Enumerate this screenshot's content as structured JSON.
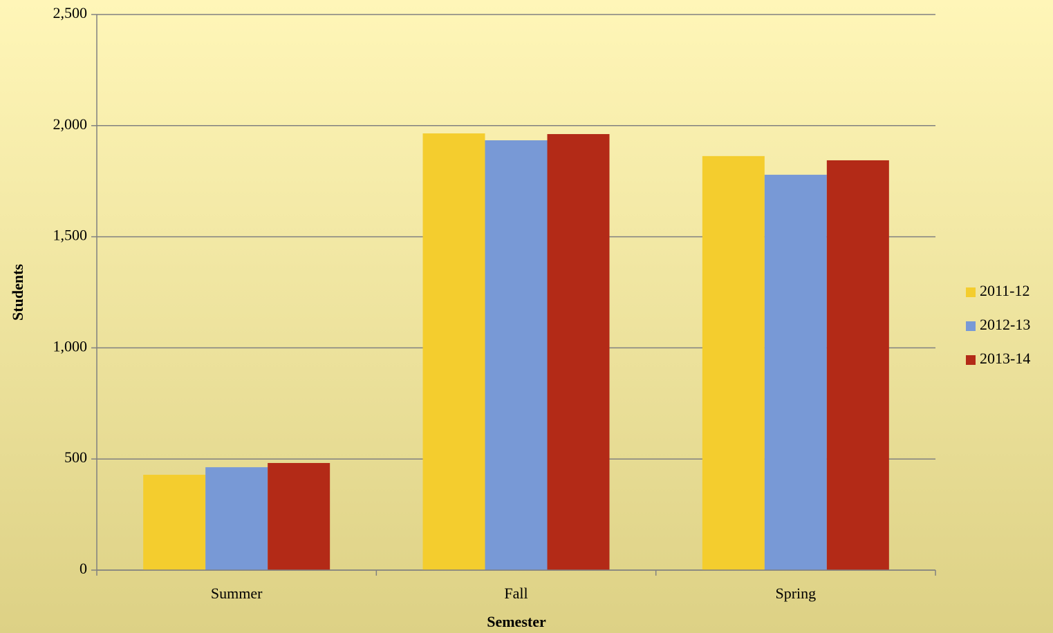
{
  "chart_data": {
    "type": "bar",
    "x_label": "Semester",
    "y_label": "Students",
    "categories": [
      "Summer",
      "Fall",
      "Spring"
    ],
    "series": [
      {
        "name": "2011-12",
        "color": "#f4cd2e",
        "values": [
          429,
          1965,
          1863
        ]
      },
      {
        "name": "2012-13",
        "color": "#7899d6",
        "values": [
          463,
          1934,
          1779
        ]
      },
      {
        "name": "2013-14",
        "color": "#b32a17",
        "values": [
          482,
          1962,
          1844
        ]
      }
    ],
    "ylim": [
      0,
      2500
    ],
    "yticks": [
      0,
      500,
      {
        "value": 1000,
        "label": "1,000"
      },
      {
        "value": 1500,
        "label": "1,500"
      },
      {
        "value": 2000,
        "label": "2,000"
      },
      {
        "value": 2500,
        "label": "2,500"
      }
    ],
    "grid": true,
    "legend": "right"
  }
}
